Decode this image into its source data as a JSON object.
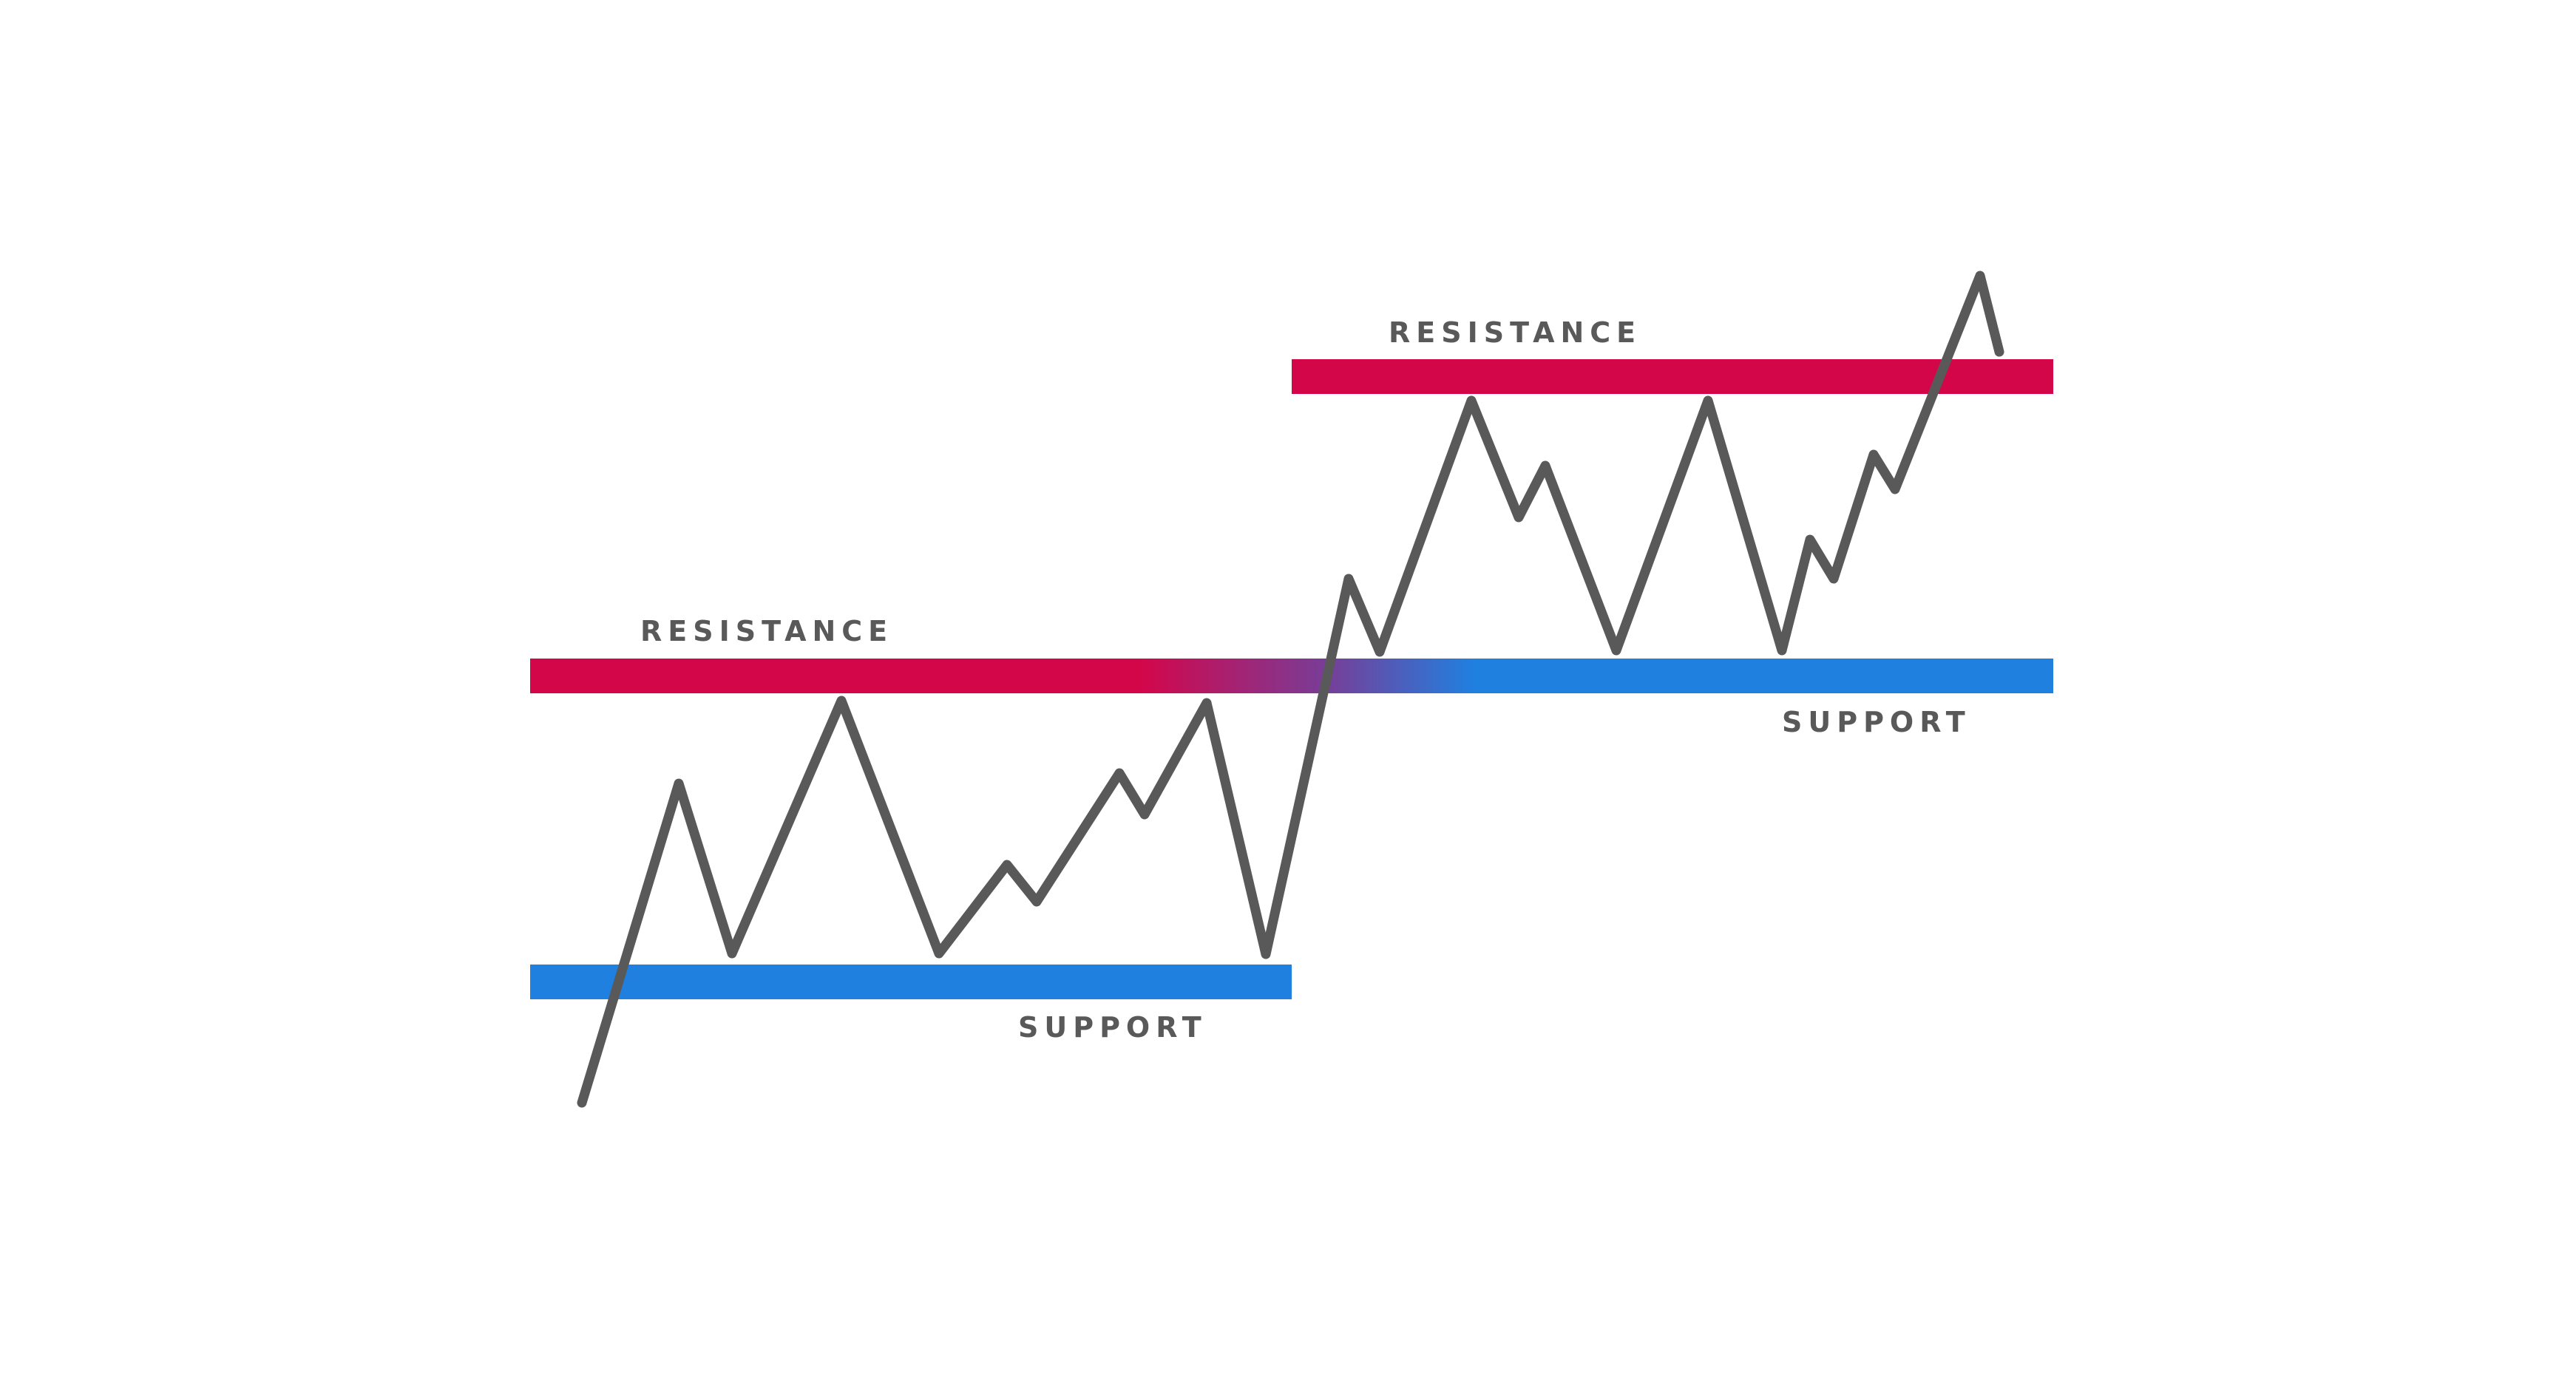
{
  "colors": {
    "background": "#ffffff",
    "resistance": "#d4064a",
    "support": "#2080e0",
    "price_line": "#595959",
    "label_text": "#595959"
  },
  "zones": {
    "first_resistance": {
      "label": "RESISTANCE"
    },
    "first_support": {
      "label": "SUPPORT"
    },
    "second_resistance": {
      "label": "RESISTANCE"
    },
    "second_support": {
      "label": "SUPPORT"
    }
  },
  "notes": {
    "flip": "The first resistance band turns into the second support band"
  }
}
